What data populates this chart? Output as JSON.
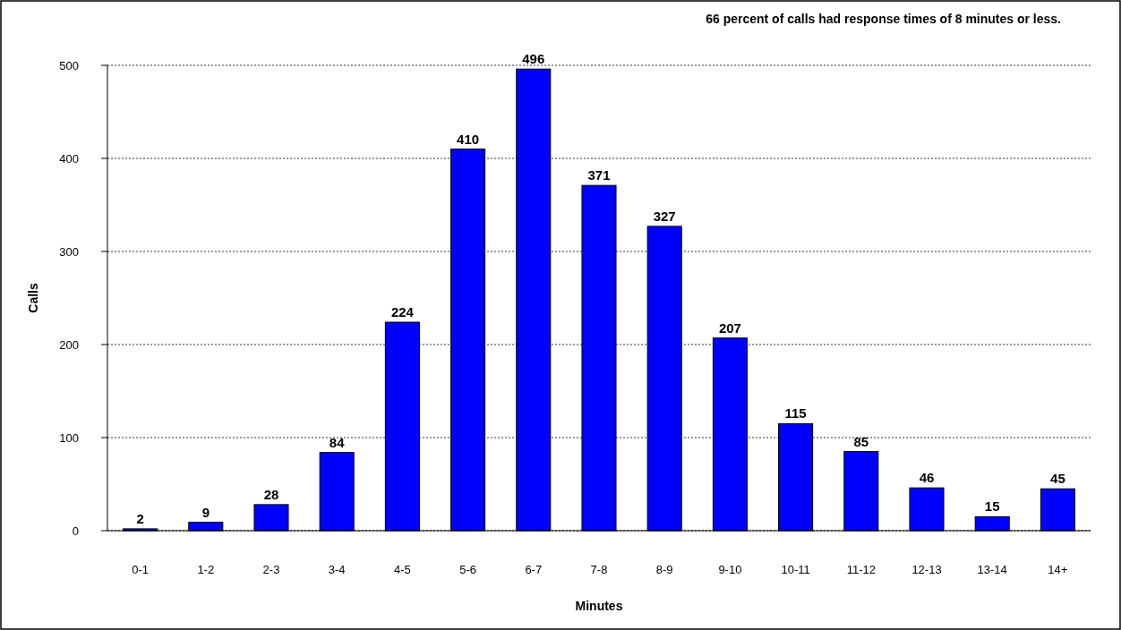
{
  "chart_data": {
    "type": "bar",
    "title": "66 percent of calls had response times of 8 minutes or less.",
    "xlabel": "Minutes",
    "ylabel": "Calls",
    "categories": [
      "0-1",
      "1-2",
      "2-3",
      "3-4",
      "4-5",
      "5-6",
      "6-7",
      "7-8",
      "8-9",
      "9-10",
      "10-11",
      "11-12",
      "12-13",
      "13-14",
      "14+"
    ],
    "values": [
      2,
      9,
      28,
      84,
      224,
      410,
      496,
      371,
      327,
      207,
      115,
      85,
      46,
      15,
      45
    ],
    "color": "#0000ff",
    "ylim": [
      0,
      500
    ],
    "yticks": [
      0,
      100,
      200,
      300,
      400,
      500
    ],
    "grid": "y",
    "data_labels": true
  }
}
